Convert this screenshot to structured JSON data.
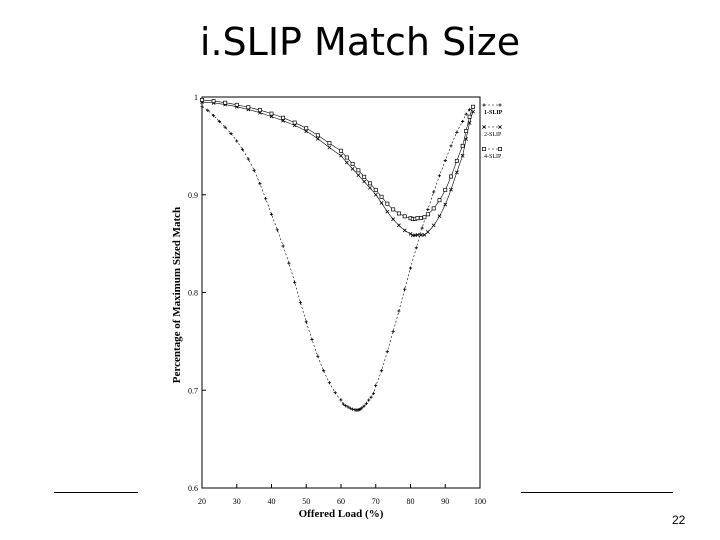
{
  "slide": {
    "title": "i.SLIP Match Size",
    "page_number": "22"
  },
  "chart_data": {
    "type": "line",
    "title": "",
    "xlabel": "Offered Load (%)",
    "ylabel": "Percentage of Maximum Sized Match",
    "xlim": [
      20,
      100
    ],
    "ylim": [
      0.6,
      1.0
    ],
    "x_ticks": [
      20,
      30,
      40,
      50,
      60,
      70,
      80,
      90,
      100
    ],
    "y_ticks": [
      0.6,
      0.7,
      0.8,
      0.9,
      1
    ],
    "y_tick_labels": [
      "0.6",
      "0.7",
      "0.8",
      "0.9",
      "1"
    ],
    "grid": false,
    "legend_position": "top-right",
    "series": [
      {
        "name": "1-SLIP",
        "marker": "plus",
        "x": [
          20,
          25,
          30,
          35,
          40,
          45,
          50,
          55,
          60,
          62,
          64,
          65,
          66,
          68,
          70,
          75,
          80,
          85,
          90,
          95,
          98
        ],
        "y": [
          0.99,
          0.975,
          0.955,
          0.925,
          0.88,
          0.83,
          0.77,
          0.72,
          0.69,
          0.683,
          0.68,
          0.68,
          0.682,
          0.69,
          0.705,
          0.76,
          0.825,
          0.885,
          0.935,
          0.975,
          0.99
        ]
      },
      {
        "name": "2-SLIP",
        "marker": "x",
        "x": [
          20,
          30,
          40,
          50,
          60,
          65,
          70,
          75,
          80,
          82,
          85,
          90,
          95,
          98
        ],
        "y": [
          0.995,
          0.99,
          0.98,
          0.965,
          0.94,
          0.92,
          0.9,
          0.875,
          0.86,
          0.859,
          0.862,
          0.89,
          0.94,
          0.985
        ]
      },
      {
        "name": "4-SLIP",
        "marker": "square",
        "x": [
          20,
          30,
          40,
          50,
          60,
          65,
          70,
          75,
          80,
          82,
          85,
          90,
          95,
          98
        ],
        "y": [
          0.997,
          0.992,
          0.983,
          0.968,
          0.945,
          0.925,
          0.905,
          0.885,
          0.876,
          0.876,
          0.88,
          0.905,
          0.95,
          0.99
        ]
      }
    ]
  }
}
